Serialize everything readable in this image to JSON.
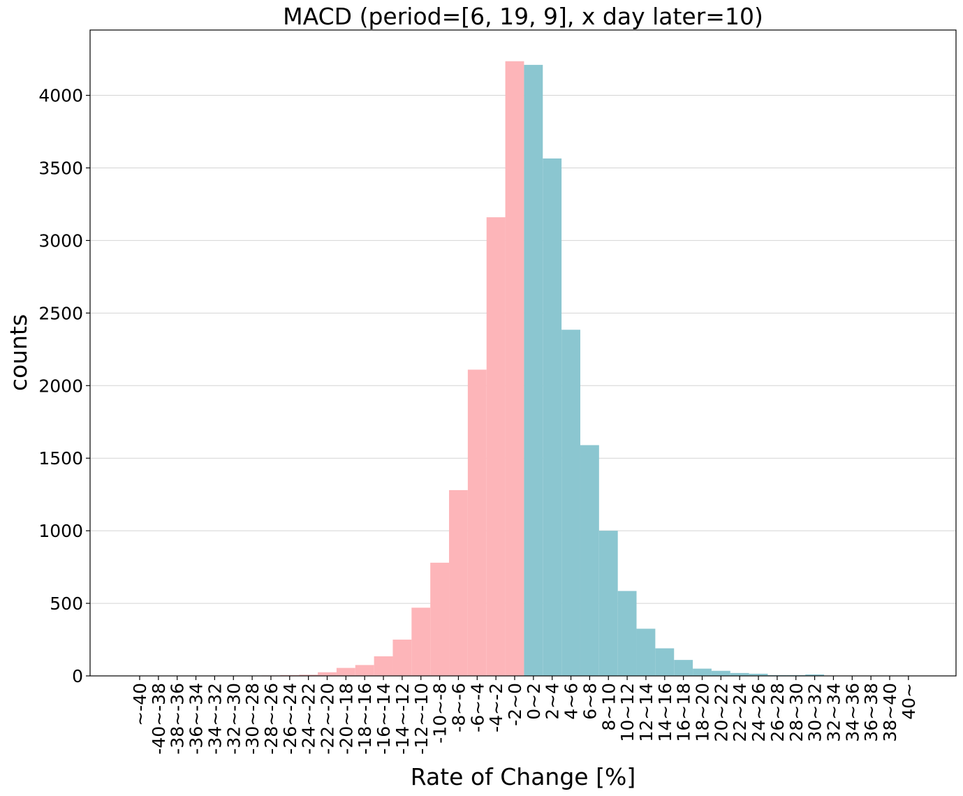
{
  "chart_data": {
    "type": "bar",
    "title": "MACD (period=[6, 19, 9], x day later=10)",
    "xlabel": "Rate of Change [%]",
    "ylabel": "counts",
    "ylim": [
      0,
      4450
    ],
    "yticks": [
      0,
      500,
      1000,
      1500,
      2000,
      2500,
      3000,
      3500,
      4000
    ],
    "grid": "horizontal",
    "colors": {
      "negative": "#fdb5b9",
      "positive": "#8bc6d0"
    },
    "categories": [
      "~-40",
      "-40~-38",
      "-38~-36",
      "-36~-34",
      "-34~-32",
      "-32~-30",
      "-30~-28",
      "-28~-26",
      "-26~-24",
      "-24~-22",
      "-22~-20",
      "-20~-18",
      "-18~-16",
      "-16~-14",
      "-14~-12",
      "-12~-10",
      "-10~-8",
      "-8~-6",
      "-6~-4",
      "-4~-2",
      "-2~0",
      "0~2",
      "2~4",
      "4~6",
      "6~8",
      "8~10",
      "10~12",
      "12~14",
      "14~16",
      "16~18",
      "18~20",
      "20~22",
      "22~24",
      "24~26",
      "26~28",
      "28~30",
      "30~32",
      "32~34",
      "34~36",
      "36~38",
      "38~40",
      "40~"
    ],
    "series": [
      {
        "values": [
          0,
          0,
          0,
          0,
          1,
          1,
          2,
          3,
          5,
          8,
          25,
          55,
          75,
          135,
          250,
          470,
          780,
          1280,
          2110,
          3160,
          4235,
          0,
          0,
          0,
          0,
          0,
          0,
          0,
          0,
          0,
          0,
          0,
          0,
          0,
          0,
          0,
          0,
          0,
          0,
          0,
          0,
          0
        ]
      },
      {
        "values": [
          0,
          0,
          0,
          0,
          0,
          0,
          0,
          0,
          0,
          0,
          0,
          0,
          0,
          0,
          0,
          0,
          0,
          0,
          0,
          0,
          0,
          4210,
          3565,
          2385,
          1590,
          1000,
          585,
          325,
          190,
          110,
          50,
          35,
          20,
          15,
          5,
          5,
          10,
          2,
          1,
          1,
          1,
          1
        ]
      }
    ]
  }
}
